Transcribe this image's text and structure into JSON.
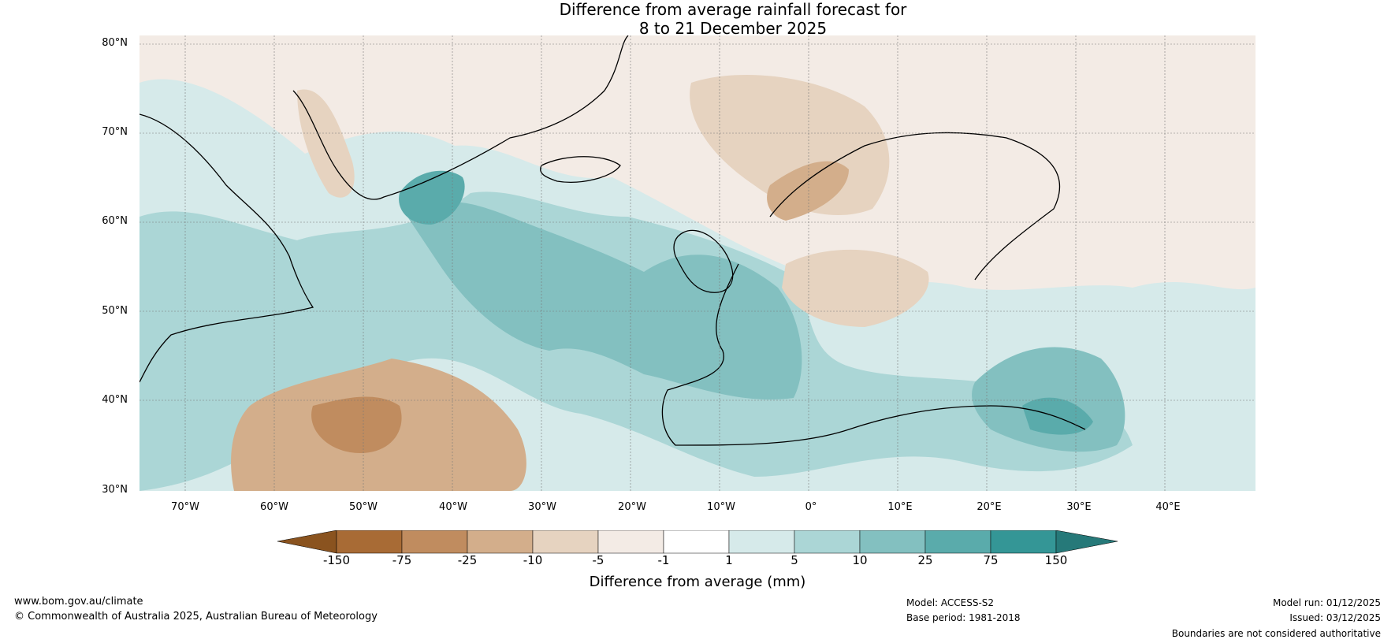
{
  "title": {
    "line1": "Difference from average rainfall forecast for",
    "line2": "8 to 21 December 2025"
  },
  "map": {
    "lat_labels": [
      "80°N",
      "70°N",
      "60°N",
      "50°N",
      "40°N",
      "30°N"
    ],
    "lon_labels": [
      "70°W",
      "60°W",
      "50°W",
      "40°W",
      "30°W",
      "20°W",
      "10°W",
      "0°",
      "10°E",
      "20°E",
      "30°E",
      "40°E"
    ]
  },
  "colorbar": {
    "ticks": [
      "-150",
      "-75",
      "-25",
      "-10",
      "-5",
      "-1",
      "1",
      "5",
      "10",
      "25",
      "75",
      "150"
    ],
    "colors": [
      "#a86b35",
      "#c08c5f",
      "#d3ae8b",
      "#e6d3c0",
      "#f3ebe5",
      "#ffffff",
      "#d6eaea",
      "#abd6d6",
      "#83c0c0",
      "#5aabab",
      "#349696",
      "#267979",
      "#8a531f"
    ],
    "label": "Difference from average (mm)"
  },
  "footer": {
    "website": "www.bom.gov.au/climate",
    "copyright": "© Commonwealth of Australia 2025, Australian Bureau of Meteorology",
    "model": "Model: ACCESS-S2",
    "base_period": "Base period: 1981-2018",
    "model_run": "Model run: 01/12/2025",
    "issued": "Issued: 03/12/2025",
    "disclaimer": "Boundaries are not considered authoritative"
  }
}
